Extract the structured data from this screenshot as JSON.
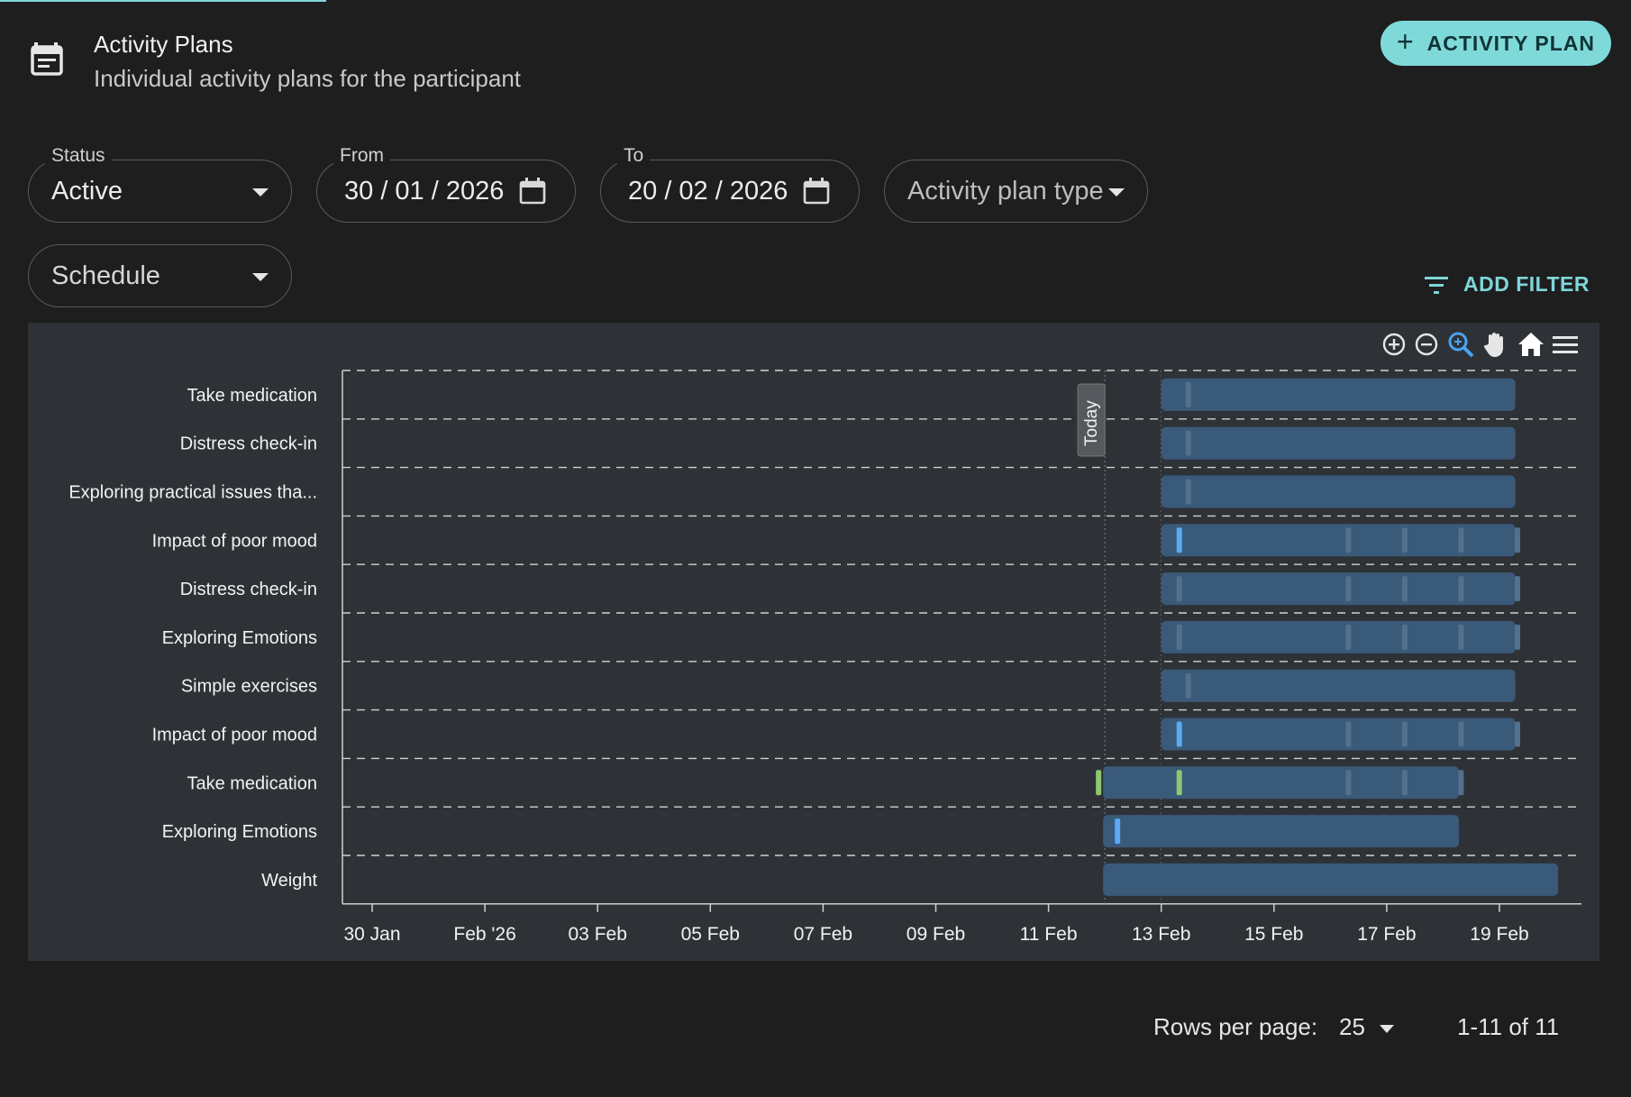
{
  "header": {
    "icon": "calendar-list-icon",
    "title": "Activity Plans",
    "subtitle": "Individual activity plans for the participant",
    "add_button_label": "ACTIVITY PLAN",
    "add_button_icon": "plus-icon"
  },
  "filters": {
    "status": {
      "label": "Status",
      "value": "Active"
    },
    "from": {
      "label": "From",
      "value": "30 / 01 / 2026"
    },
    "to": {
      "label": "To",
      "value": "20 / 02 / 2026"
    },
    "activity_plan_type": {
      "placeholder": "Activity plan type"
    },
    "view": {
      "value": "Schedule"
    },
    "add_filter_label": "ADD FILTER"
  },
  "chart_toolbar": [
    "zoom-in-icon",
    "zoom-out-icon",
    "zoom-select-icon",
    "pan-hand-icon",
    "home-reset-icon",
    "menu-icon"
  ],
  "chart_data": {
    "type": "gantt",
    "x_axis": {
      "ticks": [
        "30 Jan",
        "Feb '26",
        "03 Feb",
        "05 Feb",
        "07 Feb",
        "09 Feb",
        "11 Feb",
        "13 Feb",
        "15 Feb",
        "17 Feb",
        "19 Feb"
      ],
      "tick_dates": [
        "2026-01-30",
        "2026-02-01",
        "2026-02-03",
        "2026-02-05",
        "2026-02-07",
        "2026-02-09",
        "2026-02-11",
        "2026-02-13",
        "2026-02-15",
        "2026-02-17",
        "2026-02-19"
      ],
      "range": [
        "2026-01-30",
        "2026-02-21"
      ]
    },
    "today": {
      "label": "Today",
      "date": "2026-02-12"
    },
    "grid": "dashed-horizontal",
    "colors": {
      "bar": "#3a5a7a",
      "marker_blue": "#5aaaf5",
      "marker_green": "#8cc86e",
      "marker_dim": "#53708c"
    },
    "rows": [
      {
        "label": "Take medication",
        "start": "2026-02-13",
        "end": "2026-02-20",
        "markers": [
          {
            "date": "2026-02-13",
            "type": "dim"
          }
        ]
      },
      {
        "label": "Distress check-in",
        "start": "2026-02-13",
        "end": "2026-02-20",
        "markers": [
          {
            "date": "2026-02-13",
            "type": "dim"
          }
        ]
      },
      {
        "label": "Exploring practical issues tha...",
        "start": "2026-02-13",
        "end": "2026-02-20",
        "markers": [
          {
            "date": "2026-02-13",
            "type": "dim"
          }
        ]
      },
      {
        "label": "Impact of poor mood",
        "start": "2026-02-13",
        "end": "2026-02-20",
        "markers": [
          {
            "date": "2026-02-13",
            "type": "blue"
          },
          {
            "date": "2026-02-16",
            "type": "dim"
          },
          {
            "date": "2026-02-17",
            "type": "dim"
          },
          {
            "date": "2026-02-18",
            "type": "dim"
          },
          {
            "date": "2026-02-19",
            "type": "dim"
          }
        ]
      },
      {
        "label": "Distress check-in",
        "start": "2026-02-13",
        "end": "2026-02-20",
        "markers": [
          {
            "date": "2026-02-13",
            "type": "dim"
          },
          {
            "date": "2026-02-16",
            "type": "dim"
          },
          {
            "date": "2026-02-17",
            "type": "dim"
          },
          {
            "date": "2026-02-18",
            "type": "dim"
          },
          {
            "date": "2026-02-19",
            "type": "dim"
          }
        ]
      },
      {
        "label": "Exploring Emotions",
        "start": "2026-02-13",
        "end": "2026-02-20",
        "markers": [
          {
            "date": "2026-02-13",
            "type": "dim"
          },
          {
            "date": "2026-02-16",
            "type": "dim"
          },
          {
            "date": "2026-02-17",
            "type": "dim"
          },
          {
            "date": "2026-02-18",
            "type": "dim"
          },
          {
            "date": "2026-02-19",
            "type": "dim"
          }
        ]
      },
      {
        "label": "Simple exercises",
        "start": "2026-02-13",
        "end": "2026-02-20",
        "markers": [
          {
            "date": "2026-02-13",
            "type": "dim"
          }
        ]
      },
      {
        "label": "Impact of poor mood",
        "start": "2026-02-13",
        "end": "2026-02-20",
        "markers": [
          {
            "date": "2026-02-13",
            "type": "blue"
          },
          {
            "date": "2026-02-16",
            "type": "dim"
          },
          {
            "date": "2026-02-17",
            "type": "dim"
          },
          {
            "date": "2026-02-18",
            "type": "dim"
          },
          {
            "date": "2026-02-19",
            "type": "dim"
          }
        ]
      },
      {
        "label": "Take medication",
        "start": "2026-02-12",
        "end": "2026-02-19",
        "markers": [
          {
            "date": "2026-02-12",
            "type": "green"
          },
          {
            "date": "2026-02-13",
            "type": "green"
          },
          {
            "date": "2026-02-16",
            "type": "dim"
          },
          {
            "date": "2026-02-17",
            "type": "dim"
          },
          {
            "date": "2026-02-18",
            "type": "dim"
          }
        ]
      },
      {
        "label": "Exploring Emotions",
        "start": "2026-02-12",
        "end": "2026-02-19",
        "markers": [
          {
            "date": "2026-02-12",
            "type": "blue"
          }
        ]
      },
      {
        "label": "Weight",
        "start": "2026-02-12",
        "end": "2026-02-21",
        "markers": []
      }
    ]
  },
  "pagination": {
    "rows_per_page_label": "Rows per page:",
    "rows_per_page_value": "25",
    "range_text": "1-11 of 11"
  }
}
